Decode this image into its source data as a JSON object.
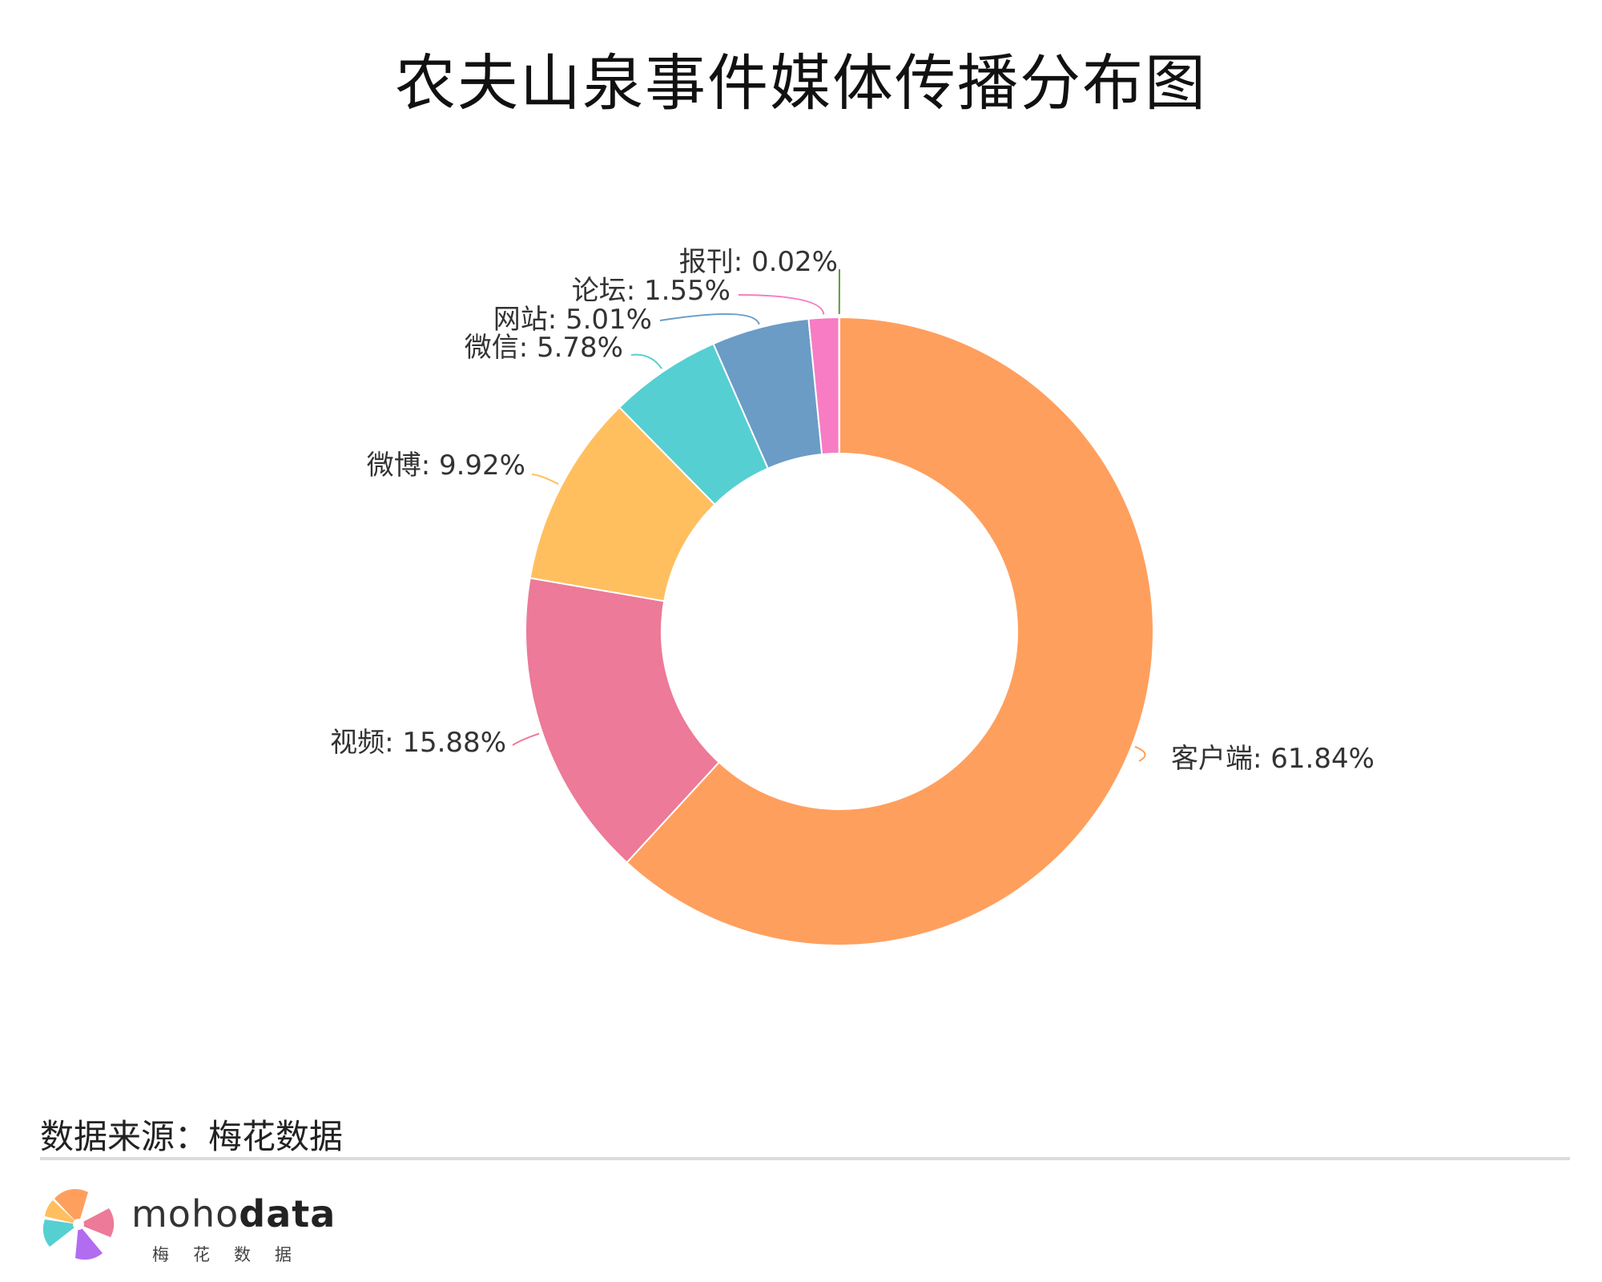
{
  "title": "农夫山泉事件媒体传播分布图",
  "source_text": "数据来源：梅花数据",
  "logo": {
    "word_light": "moho",
    "word_bold": "data",
    "subtitle": "梅花数据"
  },
  "chart_data": {
    "type": "pie",
    "title": "农夫山泉事件媒体传播分布图",
    "donut": true,
    "slices": [
      {
        "label": "客户端",
        "value": 61.84,
        "display": "客户端: 61.84%",
        "color": "#FF9F5D"
      },
      {
        "label": "视频",
        "value": 15.88,
        "display": "视频: 15.88%",
        "color": "#EC7A98"
      },
      {
        "label": "微博",
        "value": 9.92,
        "display": "微博: 9.92%",
        "color": "#FFBF5F"
      },
      {
        "label": "微信",
        "value": 5.78,
        "display": "微信: 5.78%",
        "color": "#56CFD2"
      },
      {
        "label": "网站",
        "value": 5.01,
        "display": "网站: 5.01%",
        "color": "#6A9CC6"
      },
      {
        "label": "论坛",
        "value": 1.55,
        "display": "论坛: 1.55%",
        "color": "#F77CC4"
      },
      {
        "label": "报刊",
        "value": 0.02,
        "display": "报刊: 0.02%",
        "color": "#5A9A3A"
      }
    ]
  }
}
